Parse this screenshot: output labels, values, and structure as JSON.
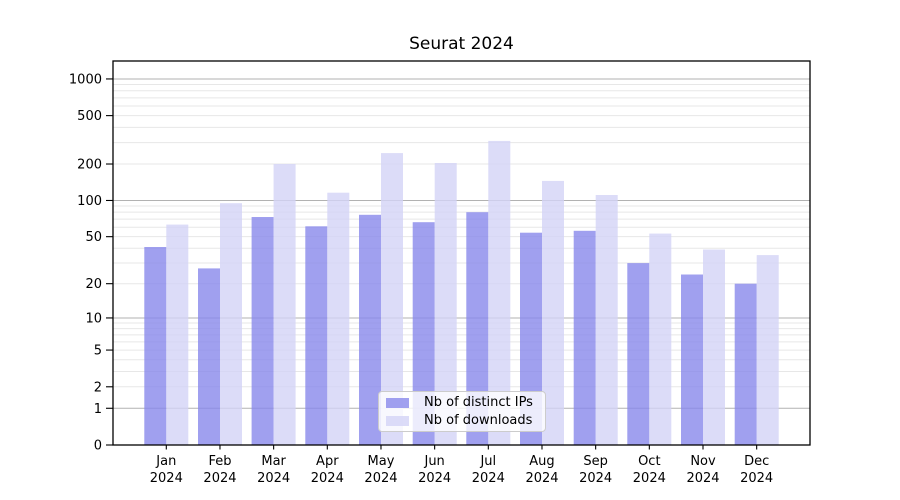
{
  "chart_data": {
    "type": "bar",
    "title": "Seurat 2024",
    "xlabel": "",
    "ylabel": "",
    "yscale": "log1p",
    "ylim": [
      0,
      1400
    ],
    "yticks": [
      0,
      1,
      2,
      5,
      10,
      20,
      50,
      100,
      200,
      500,
      1000
    ],
    "grid": true,
    "grid_major_color": "#b2b2b2",
    "grid_minor_color": "#e7e7e7",
    "legend_position": "lower center",
    "categories": [
      "Jan 2024",
      "Feb 2024",
      "Mar 2024",
      "Apr 2024",
      "May 2024",
      "Jun 2024",
      "Jul 2024",
      "Aug 2024",
      "Sep 2024",
      "Oct 2024",
      "Nov 2024",
      "Dec 2024"
    ],
    "series": [
      {
        "name": "Nb of distinct IPs",
        "color": "#8888eb",
        "alpha": 0.8,
        "values": [
          41,
          27,
          73,
          61,
          76,
          66,
          80,
          54,
          56,
          30,
          24,
          20
        ]
      },
      {
        "name": "Nb of downloads",
        "color": "#d3d3f6",
        "alpha": 0.8,
        "values": [
          63,
          95,
          200,
          116,
          246,
          204,
          310,
          145,
          111,
          53,
          39,
          35
        ]
      }
    ]
  }
}
